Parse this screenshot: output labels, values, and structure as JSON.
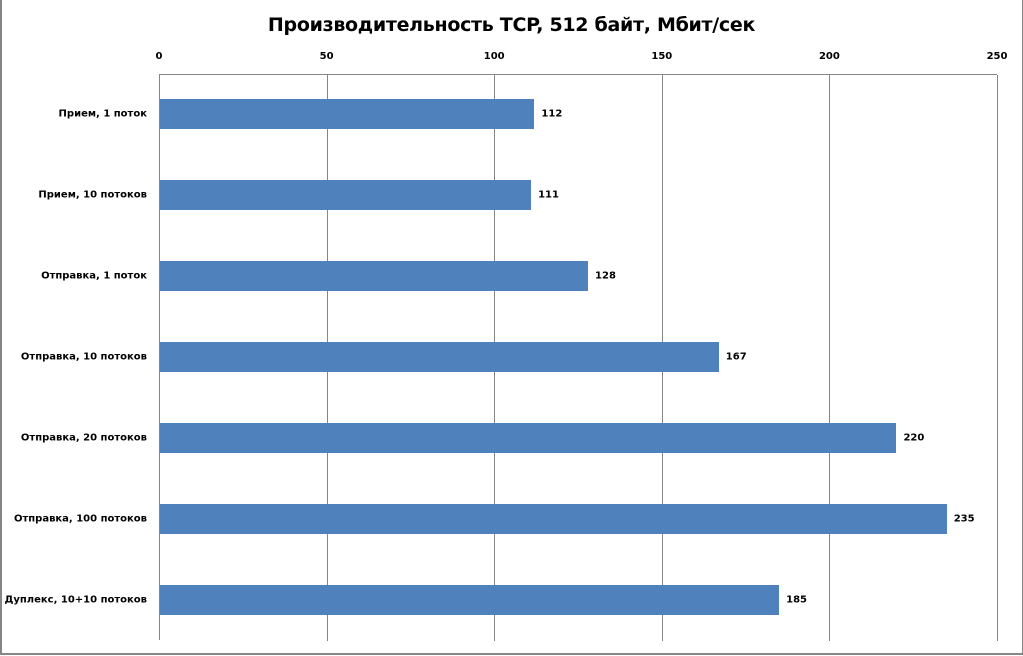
{
  "chart_data": {
    "type": "bar",
    "orientation": "horizontal",
    "title": "Производительность TCP, 512 байт, Мбит/сек",
    "categories": [
      "Прием,  1 поток",
      "Прием,  10 потоков",
      "Отправка,  1 поток",
      "Отправка,  10 потоков",
      "Отправка,  20 потоков",
      "Отправка,  100 потоков",
      "Дуплекс,  10+10 потоков"
    ],
    "values": [
      112,
      111,
      128,
      167,
      220,
      235,
      185
    ],
    "value_labels": [
      "112",
      "111",
      "128",
      "167",
      "220",
      "235",
      "185"
    ],
    "xlabel": "",
    "ylabel": "",
    "xlim": [
      0,
      250
    ],
    "xticks": [
      "0",
      "50",
      "100",
      "150",
      "200",
      "250"
    ],
    "x_axis_position": "top",
    "grid": true,
    "legend": "none",
    "bar_color": "#4F81BD"
  }
}
